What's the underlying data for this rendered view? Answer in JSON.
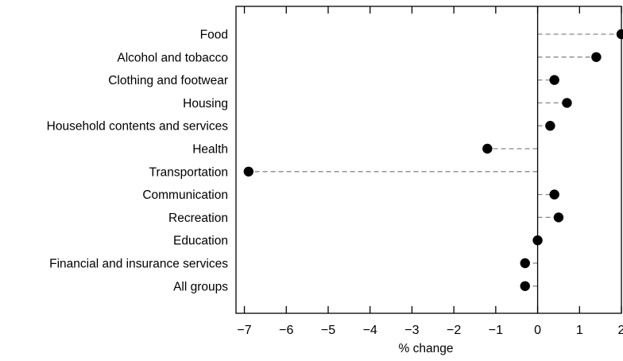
{
  "chart_data": {
    "type": "dot",
    "title": "",
    "xlabel": "% change",
    "ylabel": "",
    "xlim": [
      -7.2,
      2.0
    ],
    "x_ticks": [
      -7,
      -6,
      -5,
      -4,
      -3,
      -2,
      -1,
      0,
      1,
      2
    ],
    "x_tick_labels": [
      "−7",
      "−6",
      "−5",
      "−4",
      "−3",
      "−2",
      "−1",
      "0",
      "1",
      "2"
    ],
    "grid": false,
    "legend": "none",
    "categories": [
      "Food",
      "Alcohol and tobacco",
      "Clothing and footwear",
      "Housing",
      "Household contents and services",
      "Health",
      "Transportation",
      "Communication",
      "Recreation",
      "Education",
      "Financial and insurance services",
      "All groups"
    ],
    "values": [
      2.0,
      1.4,
      0.4,
      0.7,
      0.3,
      -1.2,
      -6.9,
      0.4,
      0.5,
      0.0,
      -0.3,
      -0.3
    ],
    "colors": {
      "marker": "#000000",
      "leader": "#888888",
      "axis": "#000000"
    }
  }
}
